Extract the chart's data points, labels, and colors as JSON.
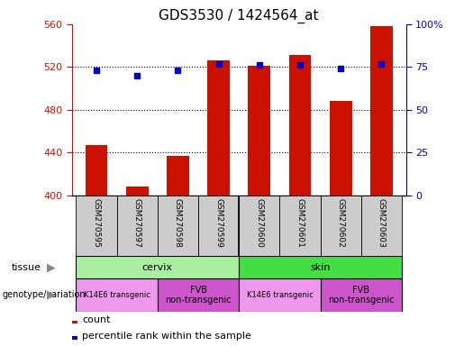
{
  "title": "GDS3530 / 1424564_at",
  "samples": [
    "GSM270595",
    "GSM270597",
    "GSM270598",
    "GSM270599",
    "GSM270600",
    "GSM270601",
    "GSM270602",
    "GSM270603"
  ],
  "counts": [
    447,
    408,
    437,
    526,
    521,
    531,
    488,
    558
  ],
  "percentiles": [
    73,
    70,
    73,
    77,
    76,
    76,
    74,
    77
  ],
  "ymin": 400,
  "ymax": 560,
  "yticks": [
    400,
    440,
    480,
    520,
    560
  ],
  "y2min": 0,
  "y2max": 100,
  "y2ticks": [
    0,
    25,
    50,
    75,
    100
  ],
  "bar_color": "#cc1100",
  "dot_color": "#0000cc",
  "tissue_cervix_color": "#aaeea0",
  "tissue_skin_color": "#44dd44",
  "genotype_k14_color": "#ee99ee",
  "genotype_fvb_color": "#cc55cc",
  "legend_count_label": "count",
  "legend_pct_label": "percentile rank within the sample",
  "left_color": "#cc1100",
  "right_color": "#0000cc",
  "bar_width": 0.55,
  "sample_fontsize": 6.5,
  "title_fontsize": 11,
  "axis_label_fontsize": 8,
  "legend_fontsize": 8,
  "tissue_fontsize": 8,
  "geno_k14_fontsize": 6,
  "geno_fvb_fontsize": 7,
  "grid_yticks": [
    440,
    480,
    520
  ]
}
